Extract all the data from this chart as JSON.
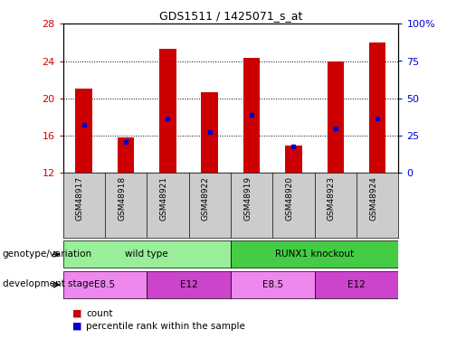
{
  "title": "GDS1511 / 1425071_s_at",
  "samples": [
    "GSM48917",
    "GSM48918",
    "GSM48921",
    "GSM48922",
    "GSM48919",
    "GSM48920",
    "GSM48923",
    "GSM48924"
  ],
  "count_values": [
    21.0,
    15.8,
    25.3,
    20.7,
    24.3,
    14.9,
    24.0,
    26.0
  ],
  "percentile_values": [
    17.2,
    15.3,
    17.8,
    16.4,
    18.2,
    14.8,
    16.8,
    17.8
  ],
  "ylim": [
    12,
    28
  ],
  "yticks": [
    12,
    16,
    20,
    24,
    28
  ],
  "right_yticks": [
    0,
    25,
    50,
    75,
    100
  ],
  "right_yticklabels": [
    "0",
    "25",
    "50",
    "75",
    "100%"
  ],
  "bar_color": "#cc0000",
  "percentile_color": "#0000cc",
  "bar_width": 0.4,
  "genotype_groups": [
    {
      "label": "wild type",
      "start": 0,
      "end": 3,
      "color": "#99ee99"
    },
    {
      "label": "RUNX1 knockout",
      "start": 4,
      "end": 7,
      "color": "#44cc44"
    }
  ],
  "development_groups": [
    {
      "label": "E8.5",
      "start": 0,
      "end": 1,
      "color": "#ee88ee"
    },
    {
      "label": "E12",
      "start": 2,
      "end": 3,
      "color": "#cc44cc"
    },
    {
      "label": "E8.5",
      "start": 4,
      "end": 5,
      "color": "#ee88ee"
    },
    {
      "label": "E12",
      "start": 6,
      "end": 7,
      "color": "#cc44cc"
    }
  ],
  "legend_count_label": "count",
  "legend_pct_label": "percentile rank within the sample",
  "genotype_label": "genotype/variation",
  "development_label": "development stage",
  "background_color": "#ffffff",
  "plot_bg_color": "#ffffff",
  "sample_bg_color": "#cccccc",
  "ylabel_left_color": "#cc0000",
  "ylabel_right_color": "#0000cc"
}
